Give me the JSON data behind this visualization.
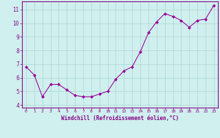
{
  "x": [
    0,
    1,
    2,
    3,
    4,
    5,
    6,
    7,
    8,
    9,
    10,
    11,
    12,
    13,
    14,
    15,
    16,
    17,
    18,
    19,
    20,
    21,
    22,
    23
  ],
  "y": [
    6.8,
    6.2,
    4.6,
    5.5,
    5.5,
    5.1,
    4.7,
    4.6,
    4.6,
    4.8,
    5.0,
    5.9,
    6.5,
    6.8,
    7.9,
    9.3,
    10.1,
    10.7,
    10.5,
    10.2,
    9.7,
    10.2,
    10.3,
    11.3
  ],
  "line_color": "#990099",
  "marker": "D",
  "marker_size": 2.0,
  "bg_color": "#cff0ee",
  "grid_color": "#b0d8d8",
  "xlabel": "Windchill (Refroidissement éolien,°C)",
  "ylim": [
    3.8,
    11.6
  ],
  "xlim": [
    -0.5,
    23.5
  ],
  "yticks": [
    4,
    5,
    6,
    7,
    8,
    9,
    10,
    11
  ],
  "xticks": [
    0,
    1,
    2,
    3,
    4,
    5,
    6,
    7,
    8,
    9,
    10,
    11,
    12,
    13,
    14,
    15,
    16,
    17,
    18,
    19,
    20,
    21,
    22,
    23
  ],
  "tick_color": "#880088",
  "label_color": "#880088",
  "axis_color": "#880088",
  "spine_color": "#880088"
}
